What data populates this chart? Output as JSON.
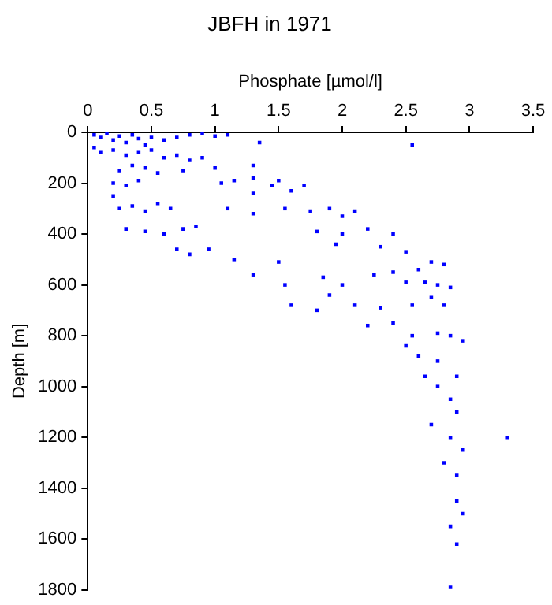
{
  "chart_data": {
    "type": "scatter",
    "title": "JBFH in 1971",
    "xlabel": "Phosphate [µmol/l]",
    "ylabel": "Depth [m]",
    "xlim": [
      0,
      3.5
    ],
    "xticks": [
      0,
      0.5,
      1,
      1.5,
      2,
      2.5,
      3,
      3.5
    ],
    "ylim": [
      1800,
      0
    ],
    "yticks": [
      0,
      200,
      400,
      600,
      800,
      1000,
      1200,
      1400,
      1600,
      1800
    ],
    "grid": false,
    "marker": "square",
    "legend": false,
    "series": [
      {
        "color": "#0000ff",
        "x": [
          0.05,
          0.1,
          0.15,
          0.2,
          0.25,
          0.3,
          0.35,
          0.4,
          0.45,
          0.5,
          0.05,
          0.1,
          0.2,
          0.3,
          0.4,
          0.5,
          0.6,
          0.7,
          0.8,
          0.9,
          1.0,
          1.1,
          1.35,
          2.55,
          0.6,
          0.7,
          0.8,
          0.9,
          0.25,
          0.35,
          0.45,
          0.55,
          0.75,
          1.0,
          1.3,
          0.2,
          0.3,
          0.4,
          0.2,
          0.25,
          0.35,
          0.45,
          0.55,
          0.65,
          0.3,
          0.45,
          0.6,
          0.75,
          0.85,
          0.7,
          0.8,
          0.95,
          1.05,
          1.15,
          1.3,
          1.45,
          1.5,
          1.7,
          1.6,
          1.3,
          1.1,
          1.3,
          1.55,
          1.75,
          1.9,
          2.0,
          2.1,
          1.8,
          2.0,
          2.2,
          2.4,
          1.95,
          2.3,
          2.5,
          2.7,
          2.8,
          2.6,
          2.4,
          1.15,
          1.3,
          1.5,
          1.55,
          1.85,
          2.0,
          2.25,
          2.5,
          2.65,
          2.75,
          2.85,
          1.9,
          1.6,
          1.8,
          2.1,
          2.3,
          2.55,
          2.7,
          2.8,
          2.2,
          2.4,
          2.55,
          2.75,
          2.85,
          2.95,
          2.5,
          2.6,
          2.75,
          2.65,
          2.9,
          2.75,
          2.85,
          2.9,
          2.7,
          2.85,
          3.3,
          2.95,
          2.8,
          2.9,
          2.9,
          2.95,
          2.85,
          2.9,
          2.85
        ],
        "values": [
          10,
          20,
          5,
          30,
          15,
          40,
          10,
          25,
          50,
          20,
          60,
          80,
          70,
          90,
          80,
          70,
          30,
          20,
          10,
          5,
          15,
          10,
          40,
          50,
          100,
          90,
          110,
          100,
          150,
          130,
          140,
          160,
          150,
          140,
          130,
          200,
          210,
          190,
          250,
          300,
          290,
          310,
          280,
          300,
          380,
          390,
          400,
          380,
          370,
          460,
          480,
          460,
          200,
          190,
          180,
          210,
          190,
          210,
          230,
          240,
          300,
          320,
          300,
          310,
          300,
          330,
          310,
          390,
          400,
          380,
          400,
          440,
          450,
          470,
          510,
          520,
          540,
          550,
          500,
          560,
          510,
          600,
          570,
          600,
          560,
          590,
          590,
          600,
          610,
          640,
          680,
          700,
          680,
          690,
          680,
          650,
          680,
          760,
          750,
          800,
          790,
          800,
          820,
          840,
          880,
          900,
          960,
          960,
          1000,
          1050,
          1100,
          1150,
          1200,
          1200,
          1250,
          1300,
          1350,
          1450,
          1500,
          1550,
          1620,
          1790
        ]
      }
    ]
  }
}
